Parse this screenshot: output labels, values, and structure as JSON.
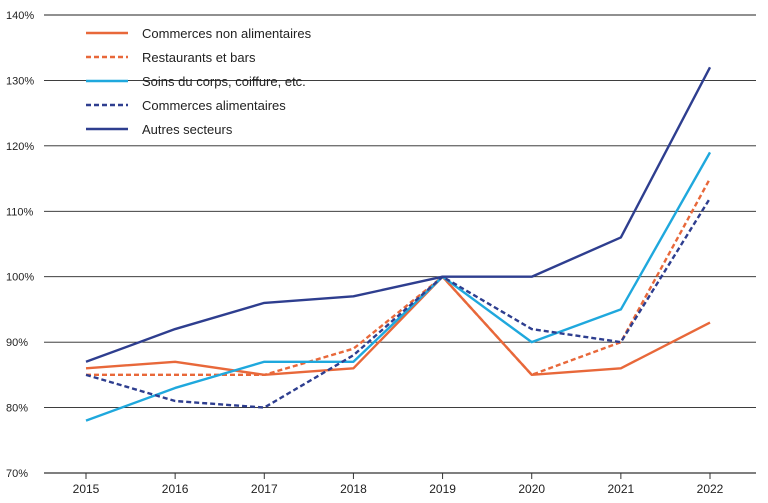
{
  "chart_data": {
    "type": "line",
    "x": [
      "2015",
      "2016",
      "2017",
      "2018",
      "2019",
      "2020",
      "2021",
      "2022"
    ],
    "ylim": [
      70,
      140
    ],
    "yticks": [
      {
        "value": 70,
        "label": "70%"
      },
      {
        "value": 80,
        "label": "80%"
      },
      {
        "value": 90,
        "label": "90%"
      },
      {
        "value": 100,
        "label": "100%"
      },
      {
        "value": 110,
        "label": "110%"
      },
      {
        "value": 120,
        "label": "120%"
      },
      {
        "value": 130,
        "label": "130%"
      },
      {
        "value": 140,
        "label": "140%"
      }
    ],
    "grid": "horizontal",
    "legend_position": "top-left",
    "series": [
      {
        "name": "Commerces non alimentaires",
        "color": "#E8683A",
        "style": "solid",
        "values": [
          86,
          87,
          85,
          86,
          100,
          85,
          86,
          93
        ]
      },
      {
        "name": "Restaurants et bars",
        "color": "#E8683A",
        "style": "dashed",
        "values": [
          85,
          85,
          85,
          89,
          100,
          85,
          90,
          115
        ]
      },
      {
        "name": "Soins du corps, coiffure, etc.",
        "color": "#1FA8DD",
        "style": "solid",
        "values": [
          78,
          83,
          87,
          87,
          100,
          90,
          95,
          119
        ]
      },
      {
        "name": "Commerces alimentaires",
        "color": "#2E3E8F",
        "style": "dashed",
        "values": [
          85,
          81,
          80,
          88,
          100,
          92,
          90,
          112
        ]
      },
      {
        "name": "Autres secteurs",
        "color": "#2E3E8F",
        "style": "solid",
        "values": [
          87,
          92,
          96,
          97,
          100,
          100,
          106,
          132
        ]
      }
    ]
  }
}
